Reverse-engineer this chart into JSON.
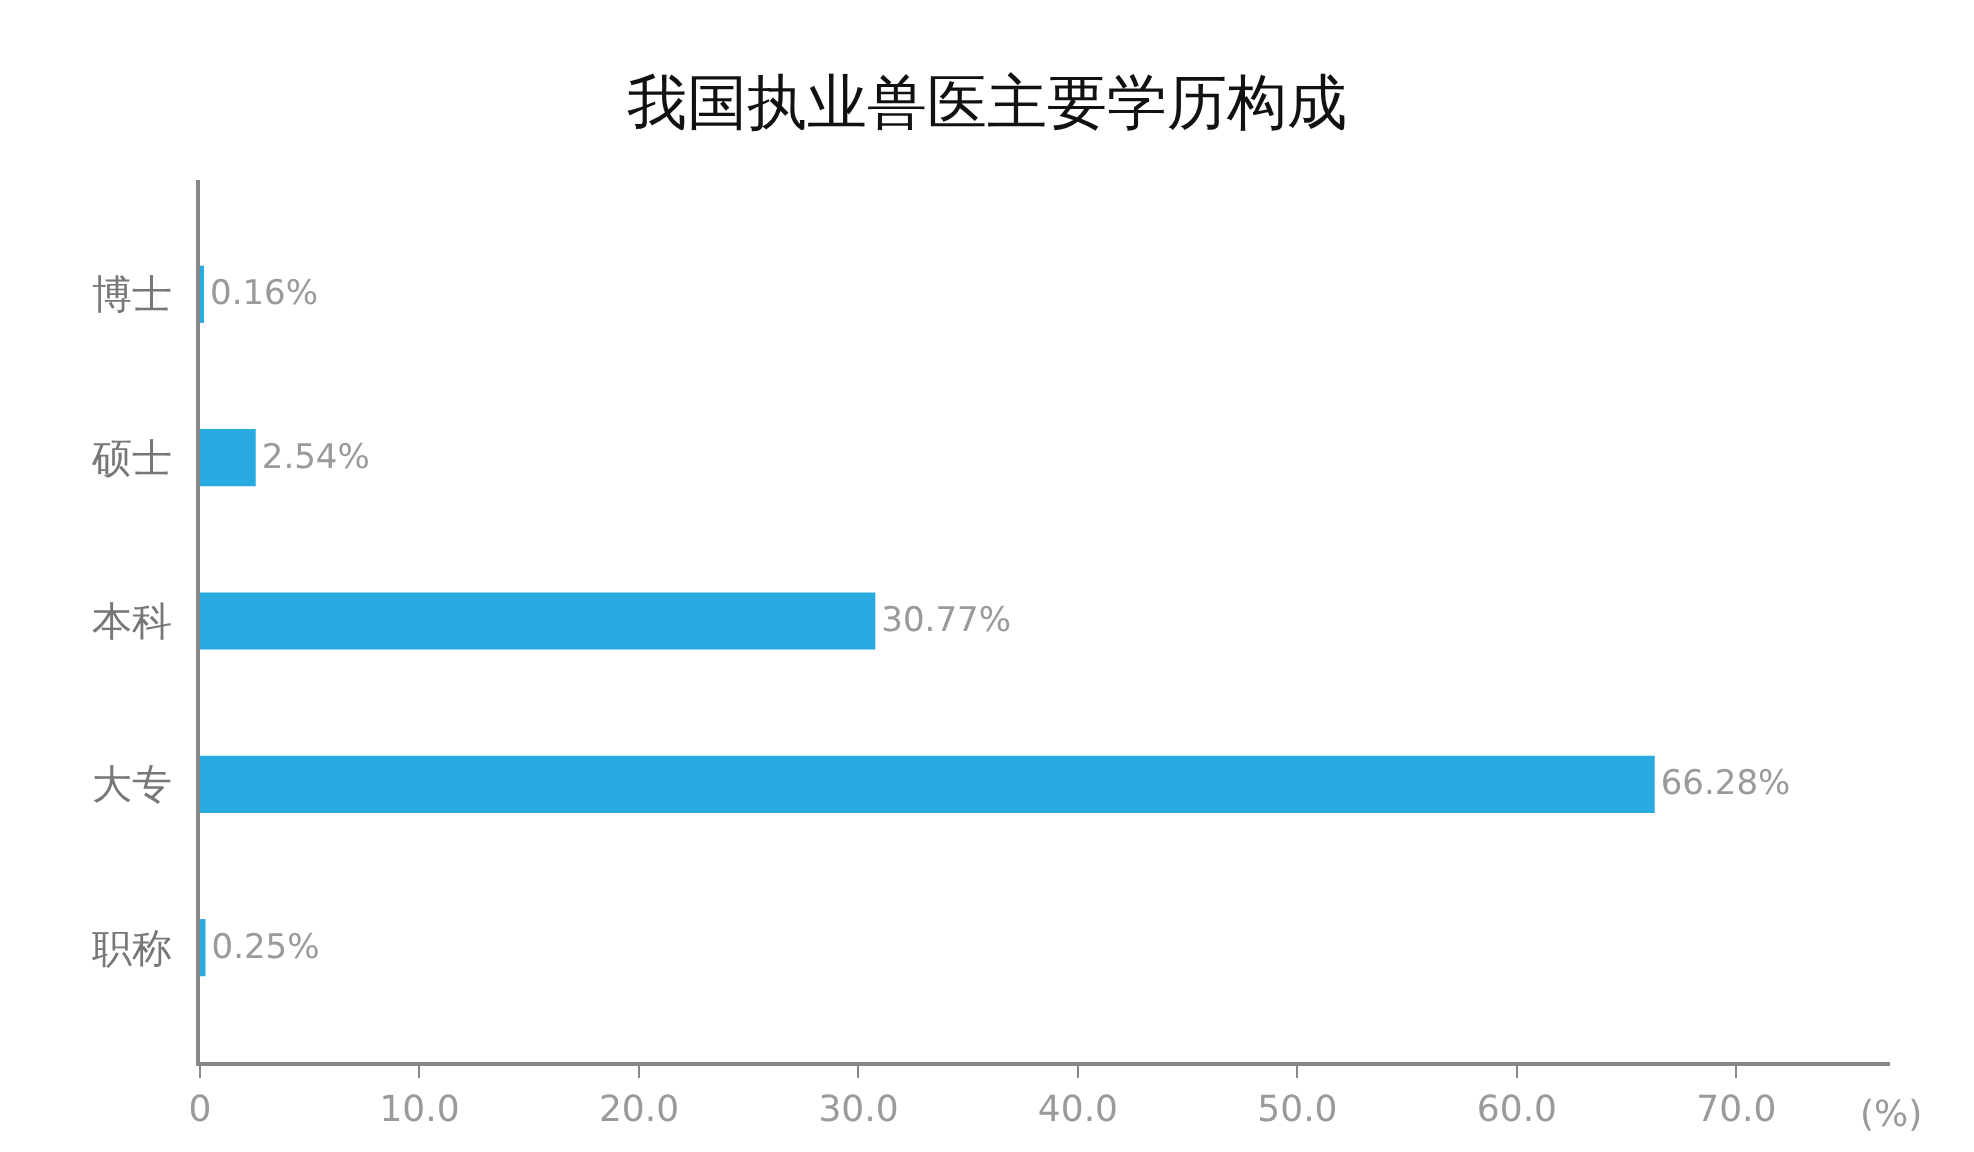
{
  "chart_data": {
    "type": "bar",
    "orientation": "horizontal",
    "title": "我国执业兽医主要学历构成",
    "xlabel": "(%)",
    "categories": [
      "博士",
      "硕士",
      "本科",
      "大专",
      "职称"
    ],
    "values": [
      0.16,
      2.54,
      30.77,
      66.28,
      0.25
    ],
    "value_labels": [
      "0.16%",
      "2.54%",
      "30.77%",
      "66.28%",
      "0.25%"
    ],
    "color": "#29abe2",
    "xlim": [
      0,
      77
    ],
    "xticks": [
      0,
      {
        "value": 10,
        "label": "10.0"
      },
      {
        "value": 20,
        "label": "20.0"
      },
      {
        "value": 30,
        "label": "30.0"
      },
      {
        "value": 40,
        "label": "40.0"
      },
      {
        "value": 50,
        "label": "50.0"
      },
      {
        "value": 60,
        "label": "60.0"
      },
      {
        "value": 70,
        "label": "70.0"
      }
    ],
    "grid": false,
    "legend": false
  }
}
